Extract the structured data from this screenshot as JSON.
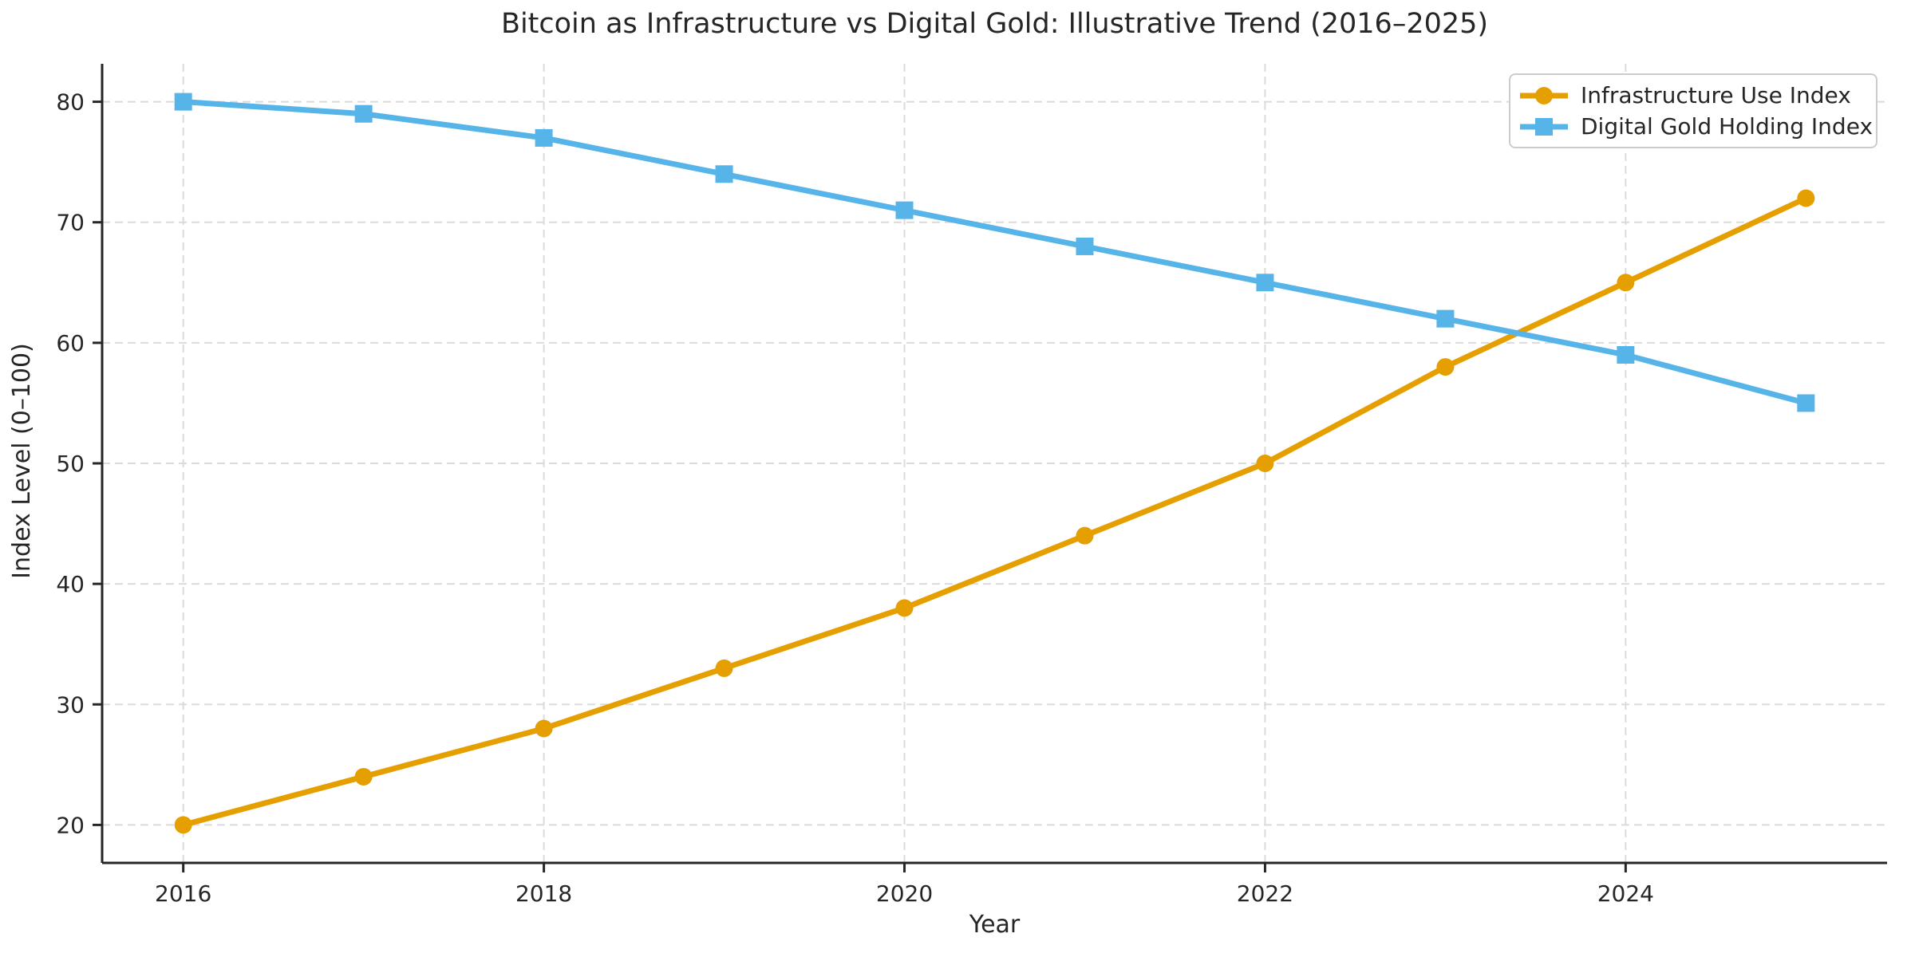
{
  "chart_data": {
    "type": "line",
    "title": "Bitcoin as Infrastructure vs Digital Gold: Illustrative Trend (2016–2025)",
    "xlabel": "Year",
    "ylabel": "Index Level (0–100)",
    "x": [
      2016,
      2017,
      2018,
      2019,
      2020,
      2021,
      2022,
      2023,
      2024,
      2025
    ],
    "series": [
      {
        "name": "Infrastructure Use Index",
        "values": [
          20,
          24,
          28,
          33,
          38,
          44,
          50,
          58,
          65,
          72
        ],
        "color": "#E69F00",
        "marker": "circle"
      },
      {
        "name": "Digital Gold Holding Index",
        "values": [
          80,
          79,
          77,
          74,
          71,
          68,
          65,
          62,
          59,
          55
        ],
        "color": "#56B4E9",
        "marker": "square"
      }
    ],
    "x_ticks": [
      2016,
      2018,
      2020,
      2022,
      2024
    ],
    "y_ticks": [
      20,
      30,
      40,
      50,
      60,
      70,
      80
    ],
    "xlim": [
      2015.55,
      2025.45
    ],
    "ylim": [
      16.85,
      83.15
    ],
    "grid": true,
    "grid_style": "dashed",
    "legend_position": "upper right",
    "colors": {
      "background": "#FFFFFF",
      "grid": "#DBDBDB",
      "spine": "#262626",
      "text": "#262626"
    }
  }
}
